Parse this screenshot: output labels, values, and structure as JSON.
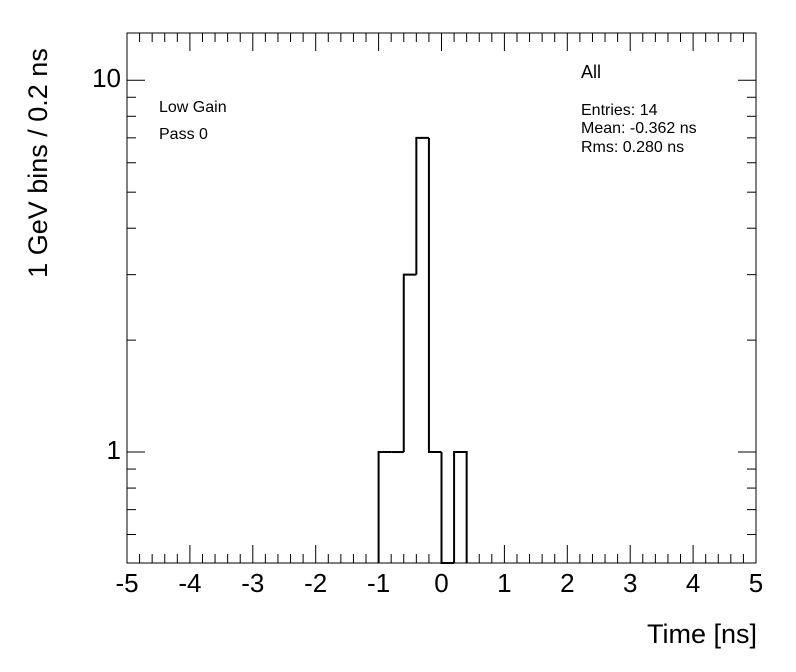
{
  "chart_data": {
    "type": "histogram",
    "bins": [
      -1.0,
      -0.8,
      -0.6,
      -0.4,
      -0.2,
      0.0,
      0.2,
      0.4
    ],
    "values": [
      1,
      1,
      3,
      7,
      1,
      0,
      1
    ],
    "color": "#000000",
    "xlabel": "Time [ns]",
    "ylabel": "1 GeV bins / 0.2 ns",
    "xlim": [
      -5,
      5
    ],
    "xticks": [
      -5,
      -4,
      -3,
      -2,
      -1,
      0,
      1,
      2,
      3,
      4,
      5
    ],
    "ylim": [
      0.503,
      13.4
    ],
    "yticks": [
      1,
      10
    ],
    "log_y": true,
    "annotations": [
      "Low Gain",
      "Pass 0"
    ],
    "stats": {
      "title": "All",
      "lines": [
        "Entries: 14",
        "Mean: -0.362 ns",
        "Rms: 0.280 ns"
      ]
    }
  }
}
